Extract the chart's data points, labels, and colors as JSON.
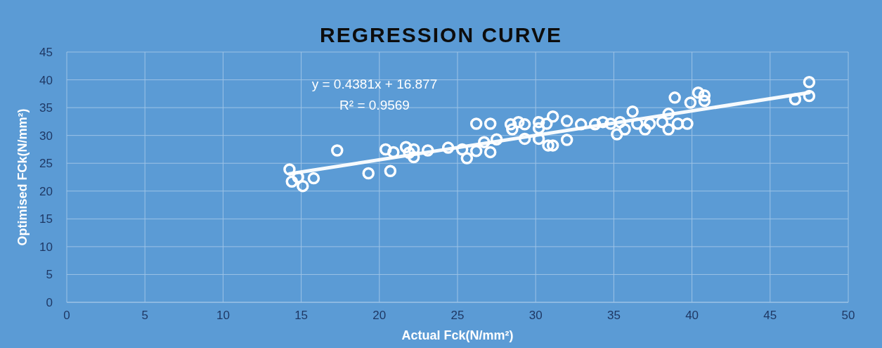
{
  "chart_data": {
    "type": "scatter",
    "title": "REGRESSION CURVE",
    "xlabel": "Actual Fck(N/mm²)",
    "ylabel": "Optimised FCk(N/mm²)",
    "annotations": [
      "y = 0.4381x + 16.877",
      "R² = 0.9569"
    ],
    "xlim": [
      0,
      50
    ],
    "xticks": [
      0,
      5,
      10,
      15,
      20,
      25,
      30,
      35,
      40,
      45,
      50
    ],
    "ylim": [
      0,
      45
    ],
    "yticks": [
      0,
      5,
      10,
      15,
      20,
      25,
      30,
      35,
      40,
      45
    ],
    "grid": true,
    "series": [
      {
        "color": "#ffffff",
        "marker": "circle",
        "x": [
          14.25,
          14.4,
          14.8,
          15.1,
          15.8,
          17.3,
          19.3,
          20.4,
          20.7,
          20.9,
          21.7,
          21.9,
          22.2,
          22.2,
          23.1,
          24.4,
          25.3,
          25.6,
          26.2,
          26.2,
          26.7,
          27.1,
          27.1,
          27.5,
          28.4,
          28.5,
          28.9,
          29.3,
          29.3,
          30.2,
          30.2,
          30.2,
          30.7,
          31.1,
          30.8,
          31.1,
          32.0,
          32.0,
          32.9,
          33.8,
          34.3,
          34.8,
          35.2,
          35.4,
          35.7,
          36.2,
          36.5,
          37.0,
          37.3,
          38.1,
          38.5,
          38.5,
          38.9,
          39.1,
          39.7,
          39.9,
          40.4,
          40.8,
          40.8,
          46.6,
          47.5,
          47.5
        ],
        "values": [
          23.9,
          21.7,
          22.5,
          20.9,
          22.3,
          27.3,
          23.2,
          27.5,
          23.6,
          27.0,
          27.9,
          26.9,
          27.5,
          26.1,
          27.3,
          27.8,
          27.5,
          25.9,
          32.1,
          27.2,
          28.8,
          32.1,
          27.0,
          29.3,
          32.0,
          31.1,
          32.4,
          32.0,
          29.4,
          32.4,
          31.3,
          29.4,
          32.1,
          33.4,
          28.2,
          28.2,
          32.6,
          29.2,
          32.0,
          32.0,
          32.4,
          32.1,
          30.2,
          32.4,
          31.1,
          34.3,
          32.1,
          31.1,
          32.1,
          32.4,
          33.9,
          31.1,
          36.8,
          32.1,
          32.1,
          35.9,
          37.7,
          37.2,
          36.2,
          36.5,
          39.6,
          37.1
        ]
      },
      {
        "type": "line",
        "color": "#ffffff",
        "line_style": "solid",
        "marker": "none",
        "x": [
          14.25,
          47.5
        ],
        "values": [
          23.1,
          37.7
        ]
      }
    ]
  }
}
